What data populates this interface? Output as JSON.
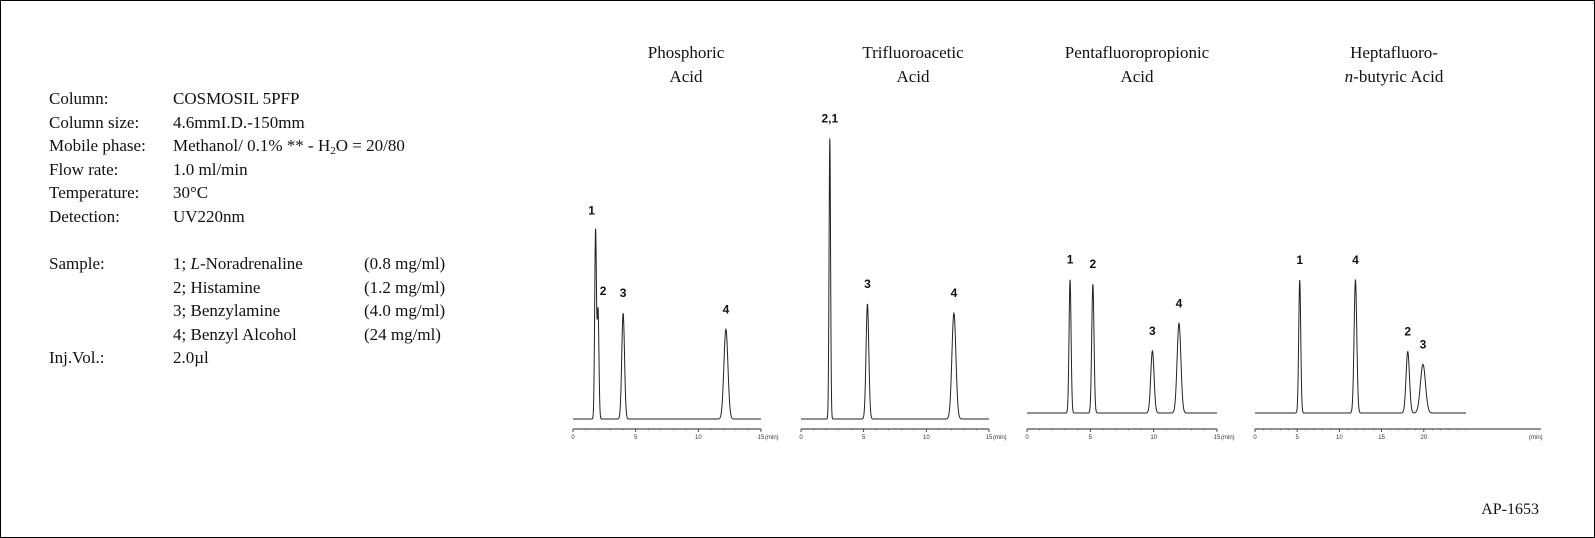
{
  "conditions": {
    "column": {
      "label": "Column:",
      "value": "COSMOSIL  5PFP"
    },
    "column_size": {
      "label": "Column size:",
      "value": "4.6mmI.D.-150mm"
    },
    "mobile_phase": {
      "label": "Mobile phase:",
      "value_pre": "Methanol/ 0.1% ** - H",
      "value_sub": "2",
      "value_post": "O = 20/80"
    },
    "flow_rate": {
      "label": "Flow rate:",
      "value": "1.0 ml/min"
    },
    "temperature": {
      "label": "Temperature:",
      "value": "30°C"
    },
    "detection": {
      "label": "Detection:",
      "value": "UV220nm"
    },
    "sample": {
      "label": "Sample:",
      "items": [
        {
          "prefix": "1; ",
          "italic": "L",
          "name": "-Noradrenaline",
          "conc": "(0.8 mg/ml)"
        },
        {
          "prefix": "2; ",
          "italic": "",
          "name": "Histamine",
          "conc": "(1.2 mg/ml)"
        },
        {
          "prefix": "3; ",
          "italic": "",
          "name": "Benzylamine",
          "conc": "(4.0 mg/ml)"
        },
        {
          "prefix": "4; ",
          "italic": "",
          "name": "Benzyl Alcohol",
          "conc": "(24 mg/ml)"
        }
      ]
    },
    "inj_vol": {
      "label": "Inj.Vol.:",
      "value": "2.0µl"
    }
  },
  "chart_data": [
    {
      "type": "line",
      "title": "Phosphoric\nAcid",
      "xlabel": "(min)",
      "xlim": [
        0,
        15
      ],
      "xticks": [
        "0",
        "5",
        "10",
        "15"
      ],
      "ylim": [
        0,
        1
      ],
      "peaks": [
        {
          "label": "1",
          "rt": 1.8,
          "height": 0.82,
          "width": 0.07
        },
        {
          "label": "2",
          "rt": 2.0,
          "height": 0.47,
          "width": 0.07
        },
        {
          "label": "3",
          "rt": 4.0,
          "height": 0.46,
          "width": 0.11
        },
        {
          "label": "4",
          "rt": 12.2,
          "height": 0.39,
          "width": 0.16
        }
      ]
    },
    {
      "type": "line",
      "title": "Trifluoroacetic\nAcid",
      "xlabel": "(min)",
      "xlim": [
        0,
        15
      ],
      "xticks": [
        "0",
        "5",
        "10",
        "15"
      ],
      "ylim": [
        0,
        1
      ],
      "peaks": [
        {
          "label": "2,1",
          "rt": 2.3,
          "height": 1.22,
          "width": 0.06
        },
        {
          "label": "3",
          "rt": 5.3,
          "height": 0.5,
          "width": 0.11
        },
        {
          "label": "4",
          "rt": 12.2,
          "height": 0.46,
          "width": 0.16
        }
      ]
    },
    {
      "type": "line",
      "title": "Pentafluoropropionic\nAcid",
      "xlabel": "(min)",
      "xlim": [
        0,
        15
      ],
      "xticks": [
        "0",
        "5",
        "10",
        "15"
      ],
      "ylim": [
        0,
        1
      ],
      "peaks": [
        {
          "label": "1",
          "rt": 3.4,
          "height": 0.58,
          "width": 0.08
        },
        {
          "label": "2",
          "rt": 5.2,
          "height": 0.56,
          "width": 0.09
        },
        {
          "label": "3",
          "rt": 9.9,
          "height": 0.27,
          "width": 0.13
        },
        {
          "label": "4",
          "rt": 12.0,
          "height": 0.39,
          "width": 0.15
        }
      ]
    },
    {
      "type": "line",
      "title": "Heptafluoro-\n",
      "title_italic": "n",
      "title_rest": "-butyric Acid",
      "xlabel": "(min)",
      "xlim": [
        0,
        25
      ],
      "xticks": [
        "0",
        "5",
        "10",
        "15",
        "20",
        "(min)"
      ],
      "ylim": [
        0,
        1
      ],
      "peaks": [
        {
          "label": "1",
          "rt": 5.3,
          "height": 0.52,
          "width": 0.12
        },
        {
          "label": "4",
          "rt": 11.9,
          "height": 0.52,
          "width": 0.16
        },
        {
          "label": "2",
          "rt": 18.1,
          "height": 0.24,
          "width": 0.2
        },
        {
          "label": "3",
          "rt": 19.9,
          "height": 0.19,
          "width": 0.3
        }
      ]
    }
  ],
  "document_code": "AP-1653"
}
